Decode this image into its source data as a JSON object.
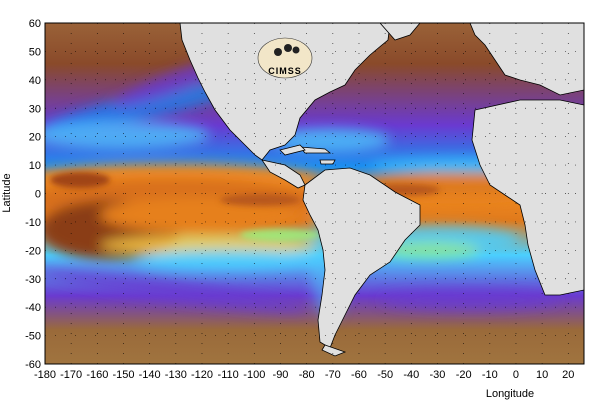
{
  "map": {
    "x_axis_label": "Longitude",
    "y_axis_label": "Latitude",
    "x_ticks": [
      -180,
      -170,
      -160,
      -150,
      -140,
      -130,
      -120,
      -110,
      -100,
      -90,
      -80,
      -70,
      -60,
      -50,
      -40,
      -30,
      -20,
      -10,
      0,
      10,
      20
    ],
    "y_ticks": [
      60,
      50,
      40,
      30,
      20,
      10,
      0,
      -10,
      -20,
      -30,
      -40,
      -50,
      -60
    ],
    "lon_range": [
      -180,
      26
    ],
    "lat_range": [
      -60,
      60
    ],
    "grid": "dotted",
    "land_color": "#e0e0e0",
    "ocean_palette": [
      "#7a3f1a",
      "#c8601c",
      "#f08a20",
      "#ffd24a",
      "#9bf07a",
      "#4bd0ff",
      "#1c7ff0",
      "#6a3ad0",
      "#a07ab0",
      "#8a5a3a"
    ],
    "logo": {
      "text": "CIMSS",
      "position": "upper-center"
    }
  }
}
